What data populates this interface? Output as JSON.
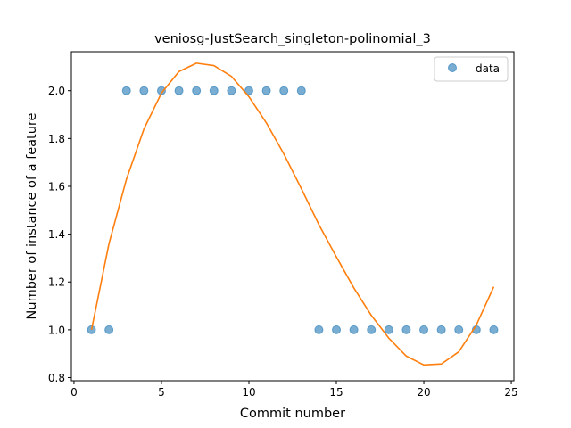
{
  "chart_data": {
    "type": "scatter",
    "title": "veniosg-JustSearch_singleton-polinomial_3",
    "xlabel": "Commit number",
    "ylabel": "Number of instance of a feature",
    "xlim": [
      -0.15,
      25.15
    ],
    "ylim": [
      0.787,
      2.163
    ],
    "xticks": [
      0,
      5,
      10,
      15,
      20,
      25
    ],
    "xtick_labels": [
      "0",
      "5",
      "10",
      "15",
      "20",
      "25"
    ],
    "yticks": [
      0.8,
      1.0,
      1.2,
      1.4,
      1.6,
      1.8,
      2.0
    ],
    "ytick_labels": [
      "0.8",
      "1.0",
      "1.2",
      "1.4",
      "1.6",
      "1.8",
      "2.0"
    ],
    "grid": false,
    "legend": {
      "position": "top-right",
      "entries": [
        "data"
      ]
    },
    "series": [
      {
        "name": "data",
        "kind": "scatter",
        "color": "#1f77b4",
        "x": [
          1,
          2,
          3,
          4,
          5,
          6,
          7,
          8,
          9,
          10,
          11,
          12,
          13,
          14,
          15,
          16,
          17,
          18,
          19,
          20,
          21,
          22,
          23,
          24
        ],
        "y": [
          1,
          1,
          2,
          2,
          2,
          2,
          2,
          2,
          2,
          2,
          2,
          2,
          2,
          1,
          1,
          1,
          1,
          1,
          1,
          1,
          1,
          1,
          1,
          1
        ]
      },
      {
        "kind": "line",
        "color": "#ff7f0e",
        "x": [
          1,
          2,
          3,
          4,
          5,
          6,
          7,
          8,
          9,
          10,
          11,
          12,
          13,
          14,
          15,
          16,
          17,
          18,
          19,
          20,
          21,
          22,
          23,
          24
        ],
        "y": [
          1.0,
          1.36,
          1.63,
          1.84,
          1.99,
          2.08,
          2.115,
          2.105,
          2.06,
          1.975,
          1.865,
          1.735,
          1.59,
          1.44,
          1.305,
          1.175,
          1.06,
          0.965,
          0.89,
          0.853,
          0.857,
          0.908,
          1.02,
          1.18
        ]
      }
    ]
  }
}
